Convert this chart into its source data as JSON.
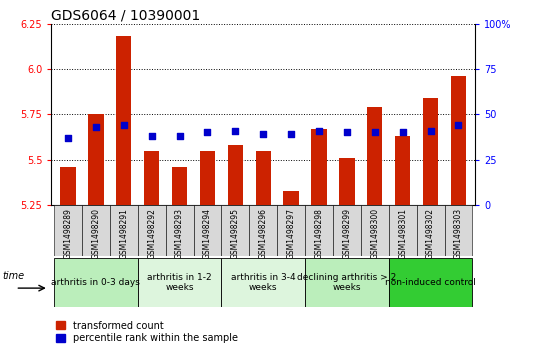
{
  "title": "GDS6064 / 10390001",
  "samples": [
    "GSM1498289",
    "GSM1498290",
    "GSM1498291",
    "GSM1498292",
    "GSM1498293",
    "GSM1498294",
    "GSM1498295",
    "GSM1498296",
    "GSM1498297",
    "GSM1498298",
    "GSM1498299",
    "GSM1498300",
    "GSM1498301",
    "GSM1498302",
    "GSM1498303"
  ],
  "red_values": [
    5.46,
    5.75,
    6.18,
    5.55,
    5.46,
    5.55,
    5.58,
    5.55,
    5.33,
    5.67,
    5.51,
    5.79,
    5.63,
    5.84,
    5.96
  ],
  "blue_values": [
    37,
    43,
    44,
    38,
    38,
    40,
    41,
    39,
    39,
    41,
    40,
    40,
    40,
    41,
    44
  ],
  "y_min": 5.25,
  "y_max": 6.25,
  "y_ticks_left": [
    5.25,
    5.5,
    5.75,
    6.0,
    6.25
  ],
  "y_ticks_right_vals": [
    0,
    25,
    50,
    75,
    100
  ],
  "y_ticks_right_labels": [
    "0",
    "25",
    "50",
    "75",
    "100%"
  ],
  "groups": [
    {
      "label": "arthritis in 0-3 days",
      "start": 0,
      "end": 3,
      "color": "#bbeebb"
    },
    {
      "label": "arthritis in 1-2\nweeks",
      "start": 3,
      "end": 6,
      "color": "#ddf5dd"
    },
    {
      "label": "arthritis in 3-4\nweeks",
      "start": 6,
      "end": 9,
      "color": "#ddf5dd"
    },
    {
      "label": "declining arthritis > 2\nweeks",
      "start": 9,
      "end": 12,
      "color": "#bbeebb"
    },
    {
      "label": "non-induced control",
      "start": 12,
      "end": 15,
      "color": "#33cc33"
    }
  ],
  "bar_color": "#cc2200",
  "dot_color": "#0000cc",
  "bar_width": 0.55,
  "dot_size": 18,
  "legend_red": "transformed count",
  "legend_blue": "percentile rank within the sample",
  "title_fontsize": 10,
  "tick_fontsize": 7,
  "sample_fontsize": 5.5,
  "group_fontsize": 6.5,
  "legend_fontsize": 7
}
